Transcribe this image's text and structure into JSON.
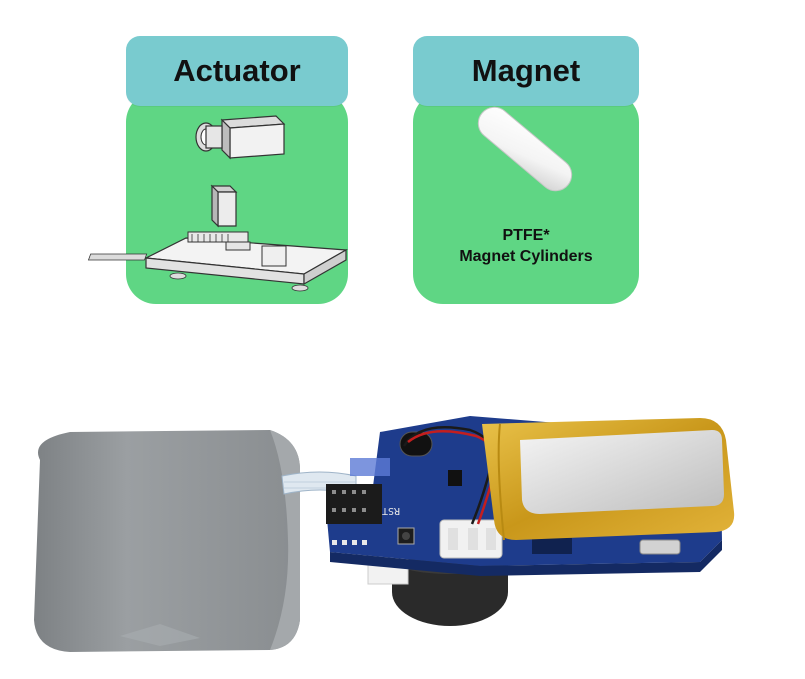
{
  "colors": {
    "header": "#79CBCF",
    "body": "#5FD684",
    "device_case": "#8D9194",
    "pcb": "#1E3C8C",
    "battery": "#D7A722"
  },
  "cards": {
    "actuator": {
      "title": "Actuator",
      "icon": "actuator-assembly-icon"
    },
    "magnet": {
      "title": "Magnet",
      "icon": "magnet-cylinder-icon",
      "caption_line1": "PTFE*",
      "caption_line2": "Magnet Cylinders"
    }
  },
  "device": {
    "rst_label": "RST"
  }
}
